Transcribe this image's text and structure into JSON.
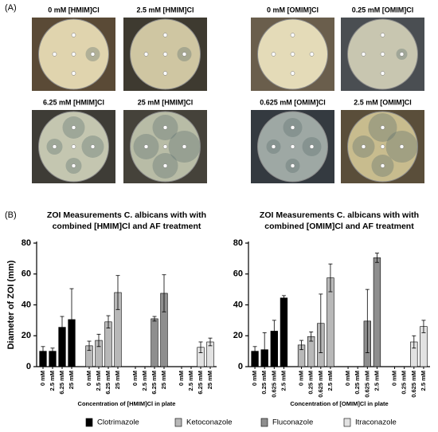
{
  "figure": {
    "panel_a": "(A)",
    "panel_b": "(B)",
    "plates": [
      "0 mM [HMIM]Cl",
      "2.5 mM [HMIM]Cl",
      "0 mM [OMIM]Cl",
      "0.25 mM [OMIM]Cl",
      "6.25 mM [HMIM]Cl",
      "25 mM [HMIM]Cl",
      "0.625 mM [OMIM]Cl",
      "2.5 mM [OMIM]Cl"
    ]
  },
  "chart_data": [
    {
      "type": "bar",
      "title": [
        "ZOI Measurements C. albicans with with",
        "combined [HMIM]Cl and AF treatment"
      ],
      "y_label": "Diameter of ZOI (mm)",
      "x_label": "Concentration of [HMIM]Cl in plate",
      "categories": [
        "0 mM",
        "2.5 mM",
        "6.25 mM",
        "25 mM",
        "0 mM",
        "2.5 mM",
        "6.25 mM",
        "25 mM",
        "0 mM",
        "2.5 mM",
        "6.25 mM",
        "25 mM",
        "0 mM",
        "2.5 mM",
        "6.25 mM",
        "25 mM"
      ],
      "series": [
        {
          "name": "Clotrimazole",
          "color": "#000000",
          "values": [
            10,
            10,
            25.5,
            30.5,
            null,
            null,
            null,
            null,
            null,
            null,
            null,
            null,
            null,
            null,
            null,
            null
          ],
          "errors": [
            3,
            2,
            7,
            20,
            null,
            null,
            null,
            null,
            null,
            null,
            null,
            null,
            null,
            null,
            null,
            null
          ]
        },
        {
          "name": "Ketoconazole",
          "color": "#b8b8b8",
          "values": [
            null,
            null,
            null,
            null,
            13.5,
            17,
            29,
            48,
            null,
            null,
            null,
            null,
            null,
            null,
            null,
            null
          ],
          "errors": [
            null,
            null,
            null,
            null,
            3,
            4,
            4,
            11,
            null,
            null,
            null,
            null,
            null,
            null,
            null,
            null
          ]
        },
        {
          "name": "Fluconazole",
          "color": "#8e8e8e",
          "values": [
            null,
            null,
            null,
            null,
            null,
            null,
            null,
            null,
            0,
            0,
            31,
            47.5,
            null,
            null,
            null,
            null
          ],
          "errors": [
            null,
            null,
            null,
            null,
            null,
            null,
            null,
            null,
            null,
            null,
            1.5,
            12,
            null,
            null,
            null,
            null
          ]
        },
        {
          "name": "Itraconazole",
          "color": "#e2e2e2",
          "values": [
            null,
            null,
            null,
            null,
            null,
            null,
            null,
            null,
            null,
            null,
            null,
            null,
            0,
            0,
            12.5,
            16
          ],
          "errors": [
            null,
            null,
            null,
            null,
            null,
            null,
            null,
            null,
            null,
            null,
            null,
            null,
            null,
            null,
            3.5,
            2.5
          ]
        }
      ],
      "ylim": [
        0,
        80
      ],
      "yticks": [
        0,
        20,
        40,
        60,
        80
      ]
    },
    {
      "type": "bar",
      "title": [
        "ZOI Measurements C. albicans with with",
        "combined [OMIM]Cl and AF treatment"
      ],
      "x_label": "Concentration of [OMIM]Cl in plate",
      "categories": [
        "0 mM",
        "0.25 mM",
        "0.625 mM",
        "2.5 mM",
        "0 mM",
        "0.25 mM",
        "0.625 mM",
        "2.5 mM",
        "0 mM",
        "0.25 mM",
        "0.625 mM",
        "2.5 mM",
        "0 mM",
        "0.25 mM",
        "0.625 mM",
        "2.5 mM"
      ],
      "series": [
        {
          "name": "Clotrimazole",
          "color": "#000000",
          "values": [
            10,
            11,
            23,
            44.5,
            null,
            null,
            null,
            null,
            null,
            null,
            null,
            null,
            null,
            null,
            null,
            null
          ],
          "errors": [
            3,
            11,
            7,
            1.5,
            null,
            null,
            null,
            null,
            null,
            null,
            null,
            null,
            null,
            null,
            null,
            null
          ]
        },
        {
          "name": "Ketoconazole",
          "color": "#b8b8b8",
          "values": [
            null,
            null,
            null,
            null,
            14,
            19.5,
            28,
            57.5,
            null,
            null,
            null,
            null,
            null,
            null,
            null,
            null
          ],
          "errors": [
            null,
            null,
            null,
            null,
            3,
            3,
            19,
            9,
            null,
            null,
            null,
            null,
            null,
            null,
            null,
            null
          ]
        },
        {
          "name": "Fluconazole",
          "color": "#8e8e8e",
          "values": [
            null,
            null,
            null,
            null,
            null,
            null,
            null,
            null,
            0,
            0,
            29.5,
            70.5,
            null,
            null,
            null,
            null
          ],
          "errors": [
            null,
            null,
            null,
            null,
            null,
            null,
            null,
            null,
            null,
            null,
            20.5,
            3,
            null,
            null,
            null,
            null
          ]
        },
        {
          "name": "Itraconazole",
          "color": "#e2e2e2",
          "values": [
            null,
            null,
            null,
            null,
            null,
            null,
            null,
            null,
            null,
            null,
            null,
            null,
            0,
            0,
            16,
            26
          ],
          "errors": [
            null,
            null,
            null,
            null,
            null,
            null,
            null,
            null,
            null,
            null,
            null,
            null,
            null,
            null,
            4,
            4
          ]
        }
      ],
      "ylim": [
        0,
        80
      ],
      "yticks": [
        0,
        20,
        40,
        60,
        80
      ]
    }
  ]
}
